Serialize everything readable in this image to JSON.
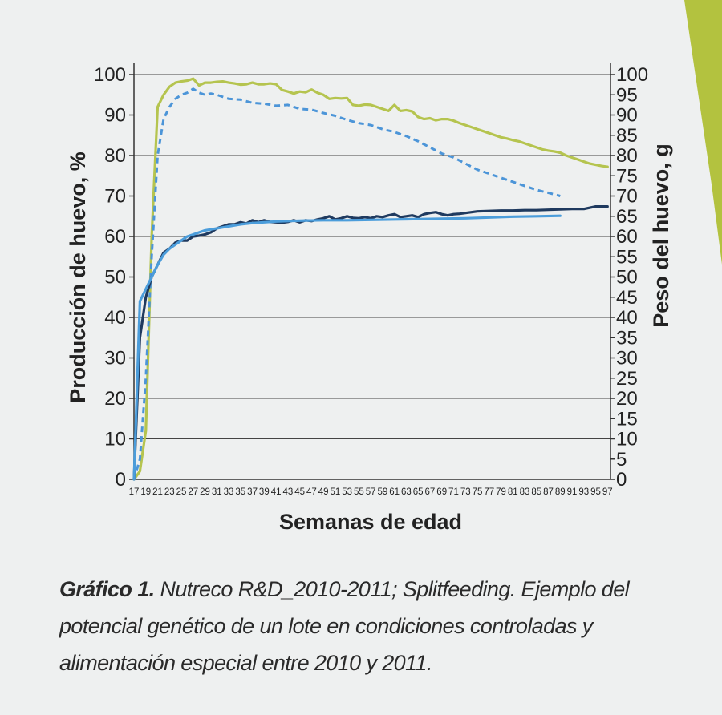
{
  "chart_data": {
    "type": "line",
    "xlabel": "Semanas de edad",
    "ylabel": "Producción de huevo, %",
    "y2label": "Peso del huevo, g",
    "x_ticks": [
      17,
      19,
      21,
      23,
      25,
      27,
      29,
      31,
      33,
      35,
      37,
      39,
      41,
      43,
      45,
      47,
      49,
      51,
      53,
      55,
      57,
      59,
      61,
      63,
      65,
      67,
      69,
      71,
      73,
      75,
      77,
      79,
      81,
      83,
      85,
      87,
      89,
      91,
      93,
      95,
      97
    ],
    "y_ticks": [
      0,
      10,
      20,
      30,
      40,
      50,
      60,
      70,
      80,
      90,
      100
    ],
    "y2_ticks": [
      0,
      5,
      10,
      15,
      20,
      25,
      30,
      35,
      40,
      45,
      50,
      55,
      60,
      65,
      70,
      75,
      80,
      85,
      90,
      95,
      100
    ],
    "xlim": [
      17,
      97.5
    ],
    "ylim": [
      0,
      100
    ],
    "y2lim": [
      0,
      100
    ],
    "grid": "horizontal",
    "series": [
      {
        "axis": "left",
        "color": "#b5c44f",
        "dash": "solid",
        "x": [
          17,
          18,
          19,
          20,
          21,
          22,
          23,
          24,
          25,
          26,
          27,
          28,
          29,
          30,
          31,
          32,
          33,
          34,
          35,
          36,
          37,
          38,
          39,
          40,
          41,
          42,
          43,
          44,
          45,
          46,
          47,
          48,
          49,
          50,
          51,
          52,
          53,
          54,
          55,
          56,
          57,
          58,
          59,
          60,
          61,
          62,
          63,
          64,
          65,
          66,
          67,
          68,
          69,
          70,
          71,
          72,
          73,
          74,
          75,
          76,
          77,
          78,
          79,
          80,
          81,
          82,
          83,
          84,
          85,
          86,
          87,
          88,
          89,
          90,
          91,
          92,
          93,
          94,
          95,
          96,
          97
        ],
        "y": [
          0,
          2,
          12,
          60,
          92,
          95,
          97,
          98,
          98.3,
          98.5,
          99,
          97.3,
          98,
          98,
          98.2,
          98.3,
          98,
          97.8,
          97.5,
          97.6,
          98,
          97.6,
          97.6,
          97.8,
          97.6,
          96.2,
          95.8,
          95.3,
          95.8,
          95.6,
          96.3,
          95.5,
          95,
          94,
          94.2,
          94.1,
          94.2,
          92.5,
          92.3,
          92.6,
          92.5,
          92,
          91.5,
          91,
          92.5,
          91,
          91.2,
          90.9,
          89.5,
          89,
          89.2,
          88.7,
          89,
          89,
          88.6,
          88,
          87.5,
          87,
          86.5,
          86,
          85.5,
          85,
          84.5,
          84.2,
          83.8,
          83.5,
          83,
          82.5,
          82,
          81.5,
          81.2,
          81,
          80.7,
          80,
          79.5,
          79,
          78.5,
          78,
          77.7,
          77.4,
          77.2
        ]
      },
      {
        "axis": "right",
        "color": "#4c95d8",
        "dash": "dashed",
        "x": [
          17,
          18,
          19,
          20,
          21,
          22,
          23,
          24,
          25,
          26,
          27,
          28,
          29,
          30,
          31,
          33,
          35,
          37,
          39,
          41,
          43,
          45,
          47,
          49,
          51,
          53,
          55,
          57,
          59,
          61,
          63,
          65,
          67,
          69,
          71,
          73,
          75,
          77,
          79,
          81,
          83,
          85,
          87,
          89
        ],
        "y": [
          0,
          5,
          25,
          55,
          80,
          89,
          92,
          94,
          95,
          95.5,
          96.5,
          95.5,
          95,
          95.3,
          95,
          94,
          93.8,
          93,
          92.8,
          92.3,
          92.5,
          91.5,
          91.3,
          90.5,
          89.8,
          88.8,
          88,
          87.5,
          86.5,
          85.8,
          84.8,
          83.5,
          82,
          80.5,
          79.5,
          78,
          76.5,
          75.5,
          74.5,
          73.5,
          72.5,
          71.5,
          70.8,
          70
        ]
      },
      {
        "axis": "left",
        "color": "#1f3a5f",
        "dash": "solid",
        "x": [
          17,
          18,
          19,
          20,
          21,
          22,
          23,
          24,
          25,
          26,
          27,
          28,
          29,
          30,
          31,
          32,
          33,
          34,
          35,
          36,
          37,
          38,
          39,
          40,
          41,
          42,
          43,
          44,
          45,
          46,
          47,
          48,
          49,
          50,
          51,
          52,
          53,
          54,
          55,
          56,
          57,
          58,
          59,
          60,
          61,
          62,
          63,
          64,
          65,
          66,
          67,
          68,
          69,
          70,
          71,
          72,
          73,
          74,
          75,
          77,
          79,
          81,
          83,
          85,
          87,
          89,
          91,
          93,
          95,
          97
        ],
        "y": [
          0,
          35,
          45,
          50,
          53,
          56,
          57,
          58.5,
          59,
          59,
          60,
          60.2,
          60.5,
          61,
          62,
          62.5,
          63,
          63,
          63.5,
          63.2,
          64,
          63.5,
          64,
          63.6,
          63.5,
          63.4,
          63.6,
          64,
          63.5,
          64,
          63.8,
          64.2,
          64.5,
          65,
          64.2,
          64.5,
          65,
          64.6,
          64.5,
          64.8,
          64.5,
          65,
          64.8,
          65.2,
          65.5,
          64.8,
          65,
          65.2,
          64.8,
          65.5,
          65.8,
          66,
          65.5,
          65.2,
          65.5,
          65.6,
          65.8,
          66,
          66.2,
          66.3,
          66.4,
          66.4,
          66.5,
          66.5,
          66.6,
          66.7,
          66.8,
          66.8,
          67.4,
          67.4
        ]
      },
      {
        "axis": "left",
        "color": "#4b9ddb",
        "dash": "solid",
        "x": [
          17,
          18,
          19,
          20,
          21,
          22,
          23,
          24,
          25,
          26,
          27,
          28,
          29,
          31,
          33,
          35,
          37,
          39,
          41,
          45,
          49,
          53,
          57,
          61,
          65,
          69,
          73,
          77,
          81,
          85,
          89
        ],
        "y": [
          0,
          44,
          47,
          50,
          53,
          55.5,
          57,
          58,
          59,
          60,
          60.5,
          61,
          61.5,
          62,
          62.5,
          63,
          63.3,
          63.5,
          63.7,
          63.9,
          64,
          64,
          64.1,
          64.2,
          64.3,
          64.4,
          64.5,
          64.7,
          64.9,
          65,
          65.1
        ]
      }
    ]
  },
  "caption": {
    "label": "Gráfico 1.",
    "text": "  Nutreco R&D_2010-2011; Splitfeeding. Ejemplo del potencial genético de un lote en condiciones controladas y alimentación especial entre 2010 y 2011."
  },
  "colors": {
    "background": "#eef0f0",
    "accent_bar": "#b3c23f",
    "text": "#222222"
  }
}
